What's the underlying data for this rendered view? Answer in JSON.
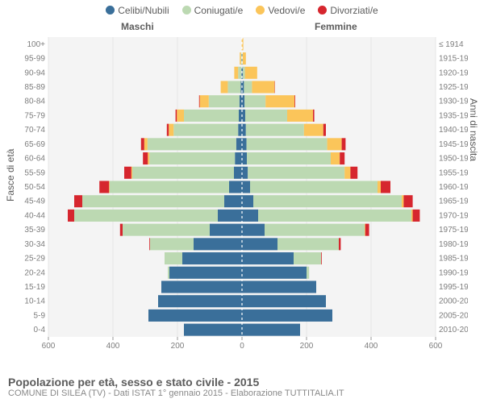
{
  "legend": [
    {
      "label": "Celibi/Nubili",
      "color": "#3a6f9a"
    },
    {
      "label": "Coniugati/e",
      "color": "#bcd9b2"
    },
    {
      "label": "Vedovi/e",
      "color": "#fbc55a"
    },
    {
      "label": "Divorziati/e",
      "color": "#d6262e"
    }
  ],
  "header": {
    "male": "Maschi",
    "female": "Femmine"
  },
  "axis_titles": {
    "left": "Fasce di età",
    "right": "Anni di nascita"
  },
  "chart": {
    "type": "population-pyramid",
    "scale_max": 600,
    "x_ticks": [
      600,
      400,
      200,
      0,
      200,
      400,
      600
    ],
    "plot_bg": "#f4f4f4",
    "grid_color": "#e6e6e6",
    "bar_gap": 0.15,
    "age_labels": [
      "0-4",
      "5-9",
      "10-14",
      "15-19",
      "20-24",
      "25-29",
      "30-34",
      "35-39",
      "40-44",
      "45-49",
      "50-54",
      "55-59",
      "60-64",
      "65-69",
      "70-74",
      "75-79",
      "80-84",
      "85-89",
      "90-94",
      "95-99",
      "100+"
    ],
    "year_labels": [
      "2010-2014",
      "2005-2009",
      "2000-2004",
      "1995-1999",
      "1990-1994",
      "1985-1989",
      "1980-1984",
      "1975-1979",
      "1970-1974",
      "1965-1969",
      "1960-1964",
      "1955-1959",
      "1950-1954",
      "1945-1949",
      "1940-1944",
      "1935-1939",
      "1930-1934",
      "1925-1929",
      "1920-1924",
      "1915-1919",
      "≤ 1914"
    ],
    "male": [
      {
        "s": 180,
        "m": 0,
        "w": 0,
        "d": 0
      },
      {
        "s": 290,
        "m": 0,
        "w": 0,
        "d": 0
      },
      {
        "s": 260,
        "m": 0,
        "w": 0,
        "d": 0
      },
      {
        "s": 250,
        "m": 0,
        "w": 0,
        "d": 0
      },
      {
        "s": 225,
        "m": 5,
        "w": 0,
        "d": 0
      },
      {
        "s": 185,
        "m": 55,
        "w": 0,
        "d": 0
      },
      {
        "s": 150,
        "m": 135,
        "w": 0,
        "d": 2
      },
      {
        "s": 100,
        "m": 270,
        "w": 0,
        "d": 8
      },
      {
        "s": 75,
        "m": 445,
        "w": 0,
        "d": 20
      },
      {
        "s": 55,
        "m": 440,
        "w": 0,
        "d": 25
      },
      {
        "s": 40,
        "m": 370,
        "w": 2,
        "d": 30
      },
      {
        "s": 25,
        "m": 315,
        "w": 3,
        "d": 22
      },
      {
        "s": 22,
        "m": 265,
        "w": 5,
        "d": 15
      },
      {
        "s": 18,
        "m": 275,
        "w": 10,
        "d": 10
      },
      {
        "s": 12,
        "m": 200,
        "w": 15,
        "d": 6
      },
      {
        "s": 10,
        "m": 170,
        "w": 22,
        "d": 4
      },
      {
        "s": 8,
        "m": 95,
        "w": 28,
        "d": 2
      },
      {
        "s": 4,
        "m": 40,
        "w": 22,
        "d": 0
      },
      {
        "s": 2,
        "m": 10,
        "w": 12,
        "d": 0
      },
      {
        "s": 1,
        "m": 2,
        "w": 4,
        "d": 0
      },
      {
        "s": 0,
        "m": 0,
        "w": 1,
        "d": 0
      }
    ],
    "female": [
      {
        "s": 180,
        "m": 0,
        "w": 0,
        "d": 0
      },
      {
        "s": 280,
        "m": 0,
        "w": 0,
        "d": 0
      },
      {
        "s": 260,
        "m": 0,
        "w": 0,
        "d": 0
      },
      {
        "s": 230,
        "m": 0,
        "w": 0,
        "d": 0
      },
      {
        "s": 200,
        "m": 8,
        "w": 0,
        "d": 0
      },
      {
        "s": 160,
        "m": 85,
        "w": 0,
        "d": 2
      },
      {
        "s": 110,
        "m": 190,
        "w": 0,
        "d": 6
      },
      {
        "s": 70,
        "m": 310,
        "w": 2,
        "d": 12
      },
      {
        "s": 50,
        "m": 475,
        "w": 4,
        "d": 22
      },
      {
        "s": 35,
        "m": 460,
        "w": 6,
        "d": 28
      },
      {
        "s": 25,
        "m": 395,
        "w": 10,
        "d": 30
      },
      {
        "s": 18,
        "m": 300,
        "w": 18,
        "d": 22
      },
      {
        "s": 15,
        "m": 260,
        "w": 28,
        "d": 15
      },
      {
        "s": 14,
        "m": 250,
        "w": 45,
        "d": 12
      },
      {
        "s": 12,
        "m": 180,
        "w": 60,
        "d": 8
      },
      {
        "s": 10,
        "m": 130,
        "w": 80,
        "d": 4
      },
      {
        "s": 8,
        "m": 65,
        "w": 90,
        "d": 2
      },
      {
        "s": 6,
        "m": 25,
        "w": 70,
        "d": 1
      },
      {
        "s": 3,
        "m": 6,
        "w": 38,
        "d": 0
      },
      {
        "s": 1,
        "m": 1,
        "w": 10,
        "d": 0
      },
      {
        "s": 0,
        "m": 0,
        "w": 4,
        "d": 0
      }
    ]
  },
  "footer": {
    "title": "Popolazione per età, sesso e stato civile - 2015",
    "subtitle": "COMUNE DI SILEA (TV) - Dati ISTAT 1° gennaio 2015 - Elaborazione TUTTITALIA.IT"
  }
}
